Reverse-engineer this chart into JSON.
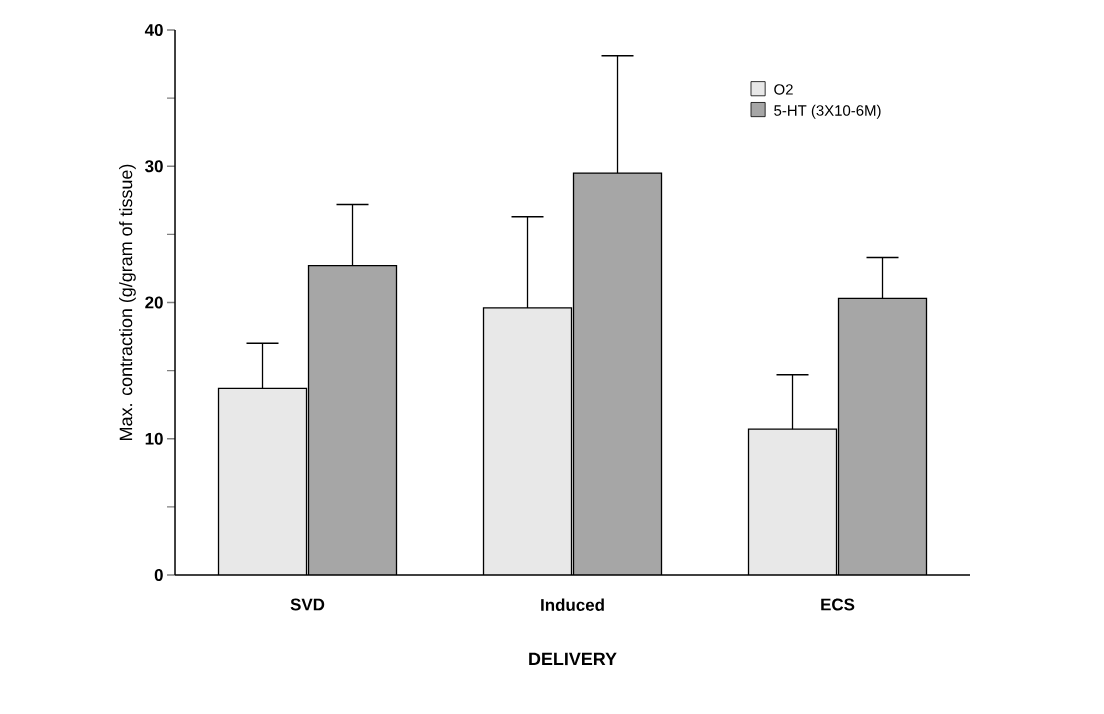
{
  "chart_data": {
    "type": "bar",
    "xlabel": "DELIVERY",
    "ylabel": "Max. contraction (g/gram of tissue)",
    "categories": [
      "SVD",
      "Induced",
      "ECS"
    ],
    "series": [
      {
        "name": "O2",
        "color": "#e8e8e8",
        "values": [
          13.7,
          19.6,
          10.7
        ],
        "errors": [
          [
            13.7,
            17.0
          ],
          [
            19.6,
            26.3
          ],
          [
            10.7,
            14.7
          ]
        ]
      },
      {
        "name": "5-HT (3X10-6M)",
        "color": "#a6a6a6",
        "values": [
          22.7,
          29.5,
          20.3
        ],
        "errors": [
          [
            22.7,
            27.2
          ],
          [
            29.5,
            38.1
          ],
          [
            20.3,
            23.3
          ]
        ]
      }
    ],
    "ylim": [
      0,
      40
    ],
    "yticks": [
      0,
      {
        "value": 5,
        "label": null
      },
      10,
      {
        "value": 15,
        "label": null
      },
      20,
      {
        "value": 25,
        "label": null
      },
      30,
      {
        "value": 35,
        "label": null
      },
      40
    ],
    "grid": false,
    "legend": "top right"
  }
}
